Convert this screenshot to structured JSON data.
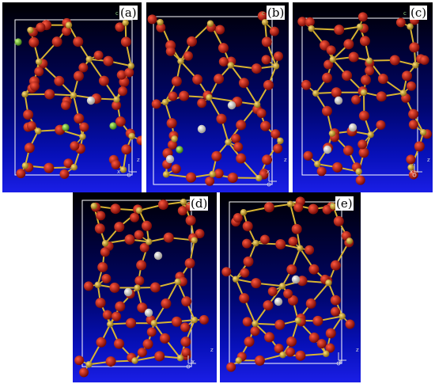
{
  "panels": [
    {
      "id": "a",
      "label": "(a)",
      "axis_x": "x",
      "axis_z": "z",
      "cell_corner": "c",
      "white_atoms": [
        [
          112,
          124
        ]
      ],
      "green_atoms": [
        [
          20,
          50
        ],
        [
          80,
          158
        ],
        [
          140,
          156
        ]
      ]
    },
    {
      "id": "b",
      "label": "(b)",
      "axis_x": "x",
      "axis_z": "z",
      "cell_corner": "c",
      "white_atoms": [
        [
          108,
          130
        ],
        [
          70,
          160
        ],
        [
          30,
          198
        ]
      ],
      "green_atoms": [
        [
          42,
          186
        ]
      ]
    },
    {
      "id": "c",
      "label": "(c)",
      "axis_x": "x",
      "axis_z": "z",
      "cell_corner": "c",
      "white_atoms": [
        [
          58,
          124
        ],
        [
          76,
          158
        ],
        [
          44,
          186
        ]
      ],
      "green_atoms": []
    },
    {
      "id": "d",
      "label": "(d)",
      "axis_x": "x",
      "axis_z": "z",
      "cell_corner": "c",
      "white_atoms": [
        [
          108,
          80
        ],
        [
          70,
          126
        ],
        [
          96,
          152
        ]
      ],
      "green_atoms": []
    },
    {
      "id": "e",
      "label": "(e)",
      "axis_x": "x",
      "axis_z": "z",
      "cell_corner": "c",
      "white_atoms": [
        [
          96,
          110
        ],
        [
          74,
          138
        ]
      ],
      "green_atoms": []
    }
  ],
  "colors": {
    "oxygen": "#c41a12",
    "silicon": "#d8b431",
    "white_atom": "#e8e4dc",
    "green_atom": "#7cc43a",
    "cell": "#ffffff",
    "background_top": "#000000",
    "background_bottom": "#1a1ee6"
  }
}
